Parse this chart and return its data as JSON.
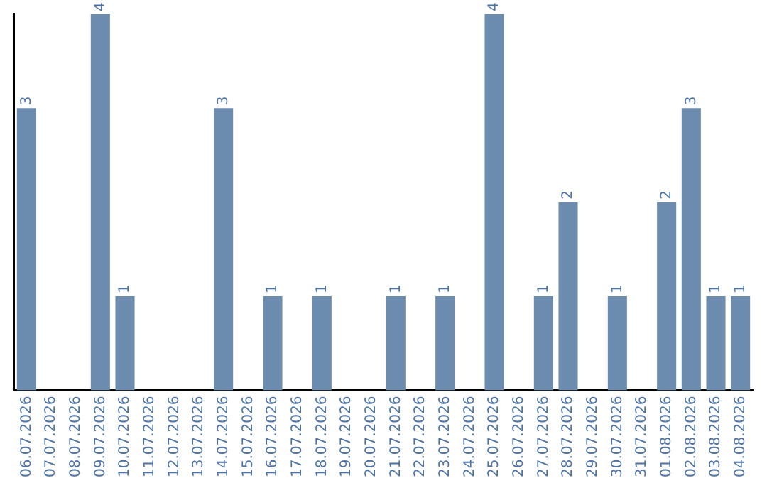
{
  "chart_data": {
    "type": "bar",
    "categories": [
      "06.07.2026",
      "07.07.2026",
      "08.07.2026",
      "09.07.2026",
      "10.07.2026",
      "11.07.2026",
      "12.07.2026",
      "13.07.2026",
      "14.07.2026",
      "15.07.2026",
      "16.07.2026",
      "17.07.2026",
      "18.07.2026",
      "19.07.2026",
      "20.07.2026",
      "21.07.2026",
      "22.07.2026",
      "23.07.2026",
      "24.07.2026",
      "25.07.2026",
      "26.07.2026",
      "27.07.2026",
      "28.07.2026",
      "29.07.2026",
      "30.07.2026",
      "31.07.2026",
      "01.08.2026",
      "02.08.2026",
      "03.08.2026",
      "04.08.2026"
    ],
    "values": [
      3,
      0,
      0,
      4,
      1,
      0,
      0,
      0,
      3,
      0,
      1,
      0,
      1,
      0,
      0,
      1,
      0,
      1,
      0,
      4,
      0,
      1,
      2,
      0,
      1,
      0,
      2,
      3,
      1,
      1
    ],
    "value_labels": [
      "3",
      null,
      null,
      "4",
      "1",
      null,
      null,
      null,
      "3",
      null,
      "1",
      null,
      "1",
      null,
      null,
      "1",
      null,
      "1",
      null,
      "4",
      null,
      "1",
      "2",
      null,
      "1",
      null,
      "2",
      "3",
      "1",
      "1"
    ],
    "color": "#6b8cae",
    "grid": false,
    "legend": false
  }
}
